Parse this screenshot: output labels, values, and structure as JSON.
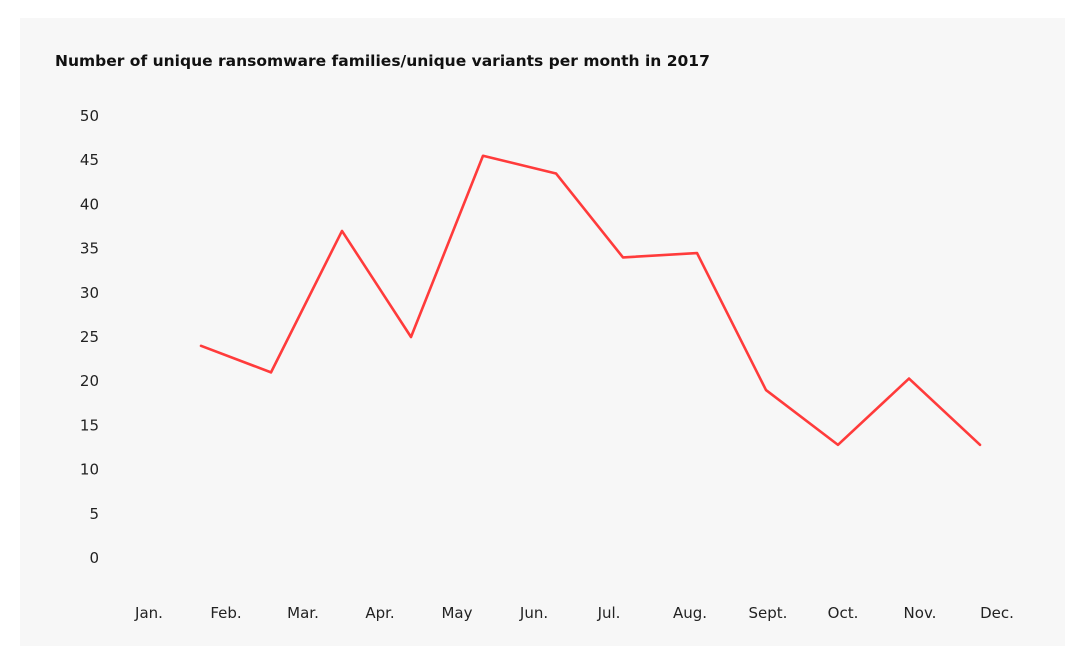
{
  "chart_data": {
    "type": "line",
    "title": "Number of unique ransomware families/unique variants per month in 2017",
    "xlabel": "",
    "ylabel": "",
    "categories": [
      "Jan.",
      "Feb.",
      "Mar.",
      "Apr.",
      "May",
      "Jun.",
      "Jul.",
      "Aug.",
      "Sept.",
      "Oct.",
      "Nov.",
      "Dec."
    ],
    "yticks": [
      "0",
      "5",
      "10",
      "15",
      "20",
      "25",
      "30",
      "35",
      "40",
      "45",
      "50"
    ],
    "ylim": [
      0,
      50
    ],
    "grid": false,
    "legend": "none",
    "series": [
      {
        "name": "",
        "color": "#ff3b3b",
        "points": [
          {
            "x": "Feb.",
            "y": 24
          },
          {
            "x": "Feb.",
            "y": 21
          },
          {
            "x": "Mar.",
            "y": 37
          },
          {
            "x": "Apr.",
            "y": 25
          },
          {
            "x": "May",
            "y": 45.5
          },
          {
            "x": "Jun.",
            "y": 43.5
          },
          {
            "x": "Jul.",
            "y": 34
          },
          {
            "x": "Aug.",
            "y": 34.5
          },
          {
            "x": "Sept.",
            "y": 19
          },
          {
            "x": "Oct.",
            "y": 12.8
          },
          {
            "x": "Nov.",
            "y": 20.3
          },
          {
            "x": "Dec.",
            "y": 12.8
          }
        ]
      }
    ]
  }
}
